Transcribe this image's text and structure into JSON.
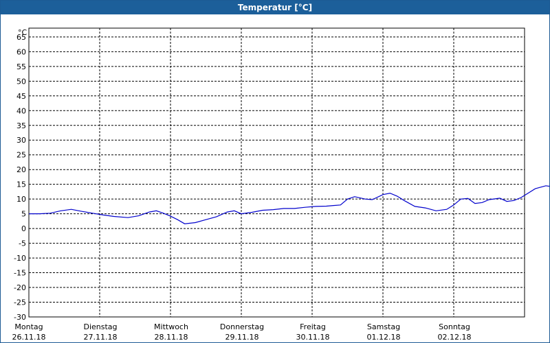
{
  "window": {
    "title": "Temperatur [°C]"
  },
  "chart_data": {
    "type": "line",
    "title": "Temperatur [°C]",
    "ylabel": "°C",
    "xlabel": "",
    "ylim": [
      -30,
      68
    ],
    "yticks": [
      65,
      60,
      55,
      50,
      45,
      40,
      35,
      30,
      25,
      20,
      15,
      10,
      5,
      0,
      -5,
      -10,
      -15,
      -20,
      -25,
      -30
    ],
    "grid": true,
    "line_color": "#0000cc",
    "grid_color": "#000000",
    "days": [
      {
        "name": "Montag",
        "date": "26.11.18"
      },
      {
        "name": "Dienstag",
        "date": "27.11.18"
      },
      {
        "name": "Mittwoch",
        "date": "28.11.18"
      },
      {
        "name": "Donnerstag",
        "date": "29.11.18"
      },
      {
        "name": "Freitag",
        "date": "30.11.18"
      },
      {
        "name": "Samstag",
        "date": "01.12.18"
      },
      {
        "name": "Sonntag",
        "date": "02.12.18"
      }
    ],
    "series": [
      {
        "values": [
          [
            0.0,
            5.0
          ],
          [
            0.15,
            5.0
          ],
          [
            0.3,
            5.2
          ],
          [
            0.45,
            6.0
          ],
          [
            0.6,
            6.5
          ],
          [
            0.75,
            5.8
          ],
          [
            0.9,
            5.2
          ],
          [
            1.05,
            4.6
          ],
          [
            1.2,
            4.1
          ],
          [
            1.4,
            3.7
          ],
          [
            1.55,
            4.3
          ],
          [
            1.7,
            5.6
          ],
          [
            1.8,
            6.0
          ],
          [
            1.9,
            5.2
          ],
          [
            2.0,
            4.2
          ],
          [
            2.1,
            3.0
          ],
          [
            2.2,
            1.6
          ],
          [
            2.35,
            2.0
          ],
          [
            2.5,
            3.0
          ],
          [
            2.65,
            4.0
          ],
          [
            2.8,
            5.6
          ],
          [
            2.9,
            6.0
          ],
          [
            3.0,
            5.0
          ],
          [
            3.15,
            5.5
          ],
          [
            3.3,
            6.2
          ],
          [
            3.45,
            6.4
          ],
          [
            3.6,
            6.8
          ],
          [
            3.75,
            6.8
          ],
          [
            3.9,
            7.2
          ],
          [
            4.05,
            7.5
          ],
          [
            4.2,
            7.6
          ],
          [
            4.3,
            7.8
          ],
          [
            4.4,
            8.0
          ],
          [
            4.5,
            10.0
          ],
          [
            4.6,
            10.8
          ],
          [
            4.75,
            10.0
          ],
          [
            4.85,
            9.8
          ],
          [
            5.0,
            11.5
          ],
          [
            5.1,
            12.0
          ],
          [
            5.2,
            11.0
          ],
          [
            5.3,
            9.5
          ],
          [
            5.45,
            7.5
          ],
          [
            5.6,
            7.0
          ],
          [
            5.75,
            6.0
          ],
          [
            5.9,
            6.5
          ],
          [
            6.0,
            8.0
          ],
          [
            6.1,
            10.0
          ],
          [
            6.2,
            10.2
          ],
          [
            6.3,
            8.5
          ],
          [
            6.4,
            8.8
          ],
          [
            6.5,
            9.8
          ],
          [
            6.65,
            10.3
          ],
          [
            6.75,
            9.2
          ],
          [
            6.85,
            9.5
          ],
          [
            6.95,
            10.5
          ],
          [
            7.05,
            12.0
          ],
          [
            7.15,
            13.5
          ],
          [
            7.3,
            14.5
          ],
          [
            7.45,
            14.0
          ],
          [
            7.6,
            13.7
          ],
          [
            7.7,
            13.8
          ],
          [
            7.8,
            13.3
          ]
        ]
      }
    ]
  }
}
